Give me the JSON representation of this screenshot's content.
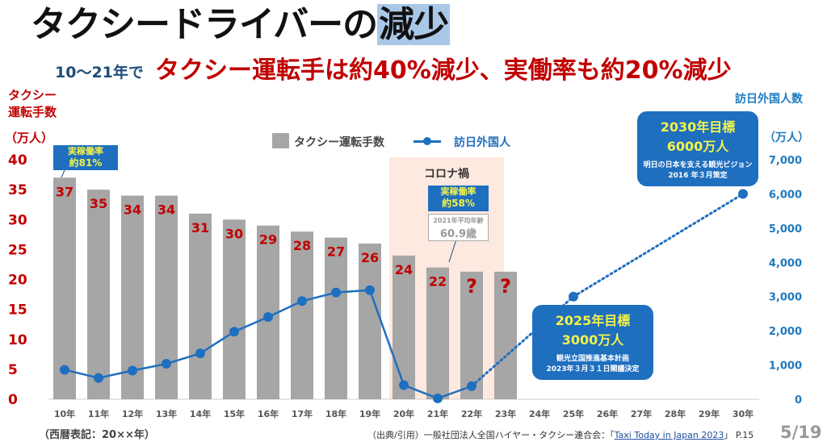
{
  "title": {
    "main": "タクシードライバーの",
    "highlight": "減少"
  },
  "subtitle": {
    "prefix": "10〜21年で",
    "headline": "タクシー運転手は約40%減少、実働率も約20%減少"
  },
  "left_axis": {
    "title_line1": "タクシー",
    "title_line2": "運転手数",
    "unit": "（万人）",
    "ticks": [
      "0",
      "5",
      "10",
      "15",
      "20",
      "25",
      "30",
      "35",
      "40"
    ]
  },
  "right_axis": {
    "title": "訪日外国人数",
    "unit": "（万人）",
    "ticks": [
      "0",
      "1,000",
      "2,000",
      "3,000",
      "4,000",
      "5,000",
      "6,000",
      "7,000"
    ]
  },
  "legend": {
    "bars": "タクシー運転手数",
    "line": "訪日外国人"
  },
  "annotations": {
    "rate2010": {
      "label": "実稼働率",
      "value": "約81%"
    },
    "corona": "コロナ禍",
    "rate2021": {
      "label": "実稼働率",
      "value": "約58%"
    },
    "age": {
      "label": "2021年平均年齢",
      "value": "60.9歳"
    },
    "target2025": {
      "title1": "2025年目標",
      "title2": "3000万人",
      "note1": "観光立国推進基本計画",
      "note2": "2023年３月３１日閣議決定"
    },
    "target2030": {
      "title1": "2030年目標",
      "title2": "6000万人",
      "note1": "明日の日本を支える観光ビジョン",
      "note2": "2016 年３月策定"
    }
  },
  "footer": {
    "era_note": "（西暦表記：20××年）",
    "source_prefix": "（出典/引用）一般社団法人全国ハイヤー・タクシー連合会：「",
    "source_link": "Taxi Today in Japan 2023",
    "source_suffix": "」 P.15",
    "page": "5/19"
  },
  "colors": {
    "bar": "#a6a6a6",
    "line": "#1f6fbf",
    "label_red": "#c00000",
    "corona_bg": "#fde9df"
  },
  "chart_data": {
    "type": "bar+line",
    "categories": [
      "10年",
      "11年",
      "12年",
      "13年",
      "14年",
      "15年",
      "16年",
      "17年",
      "18年",
      "19年",
      "20年",
      "21年",
      "22年",
      "23年",
      "24年",
      "25年",
      "26年",
      "27年",
      "28年",
      "29年",
      "30年"
    ],
    "series": [
      {
        "name": "タクシー運転手数",
        "type": "bar",
        "axis": "left",
        "values": [
          37,
          35,
          34,
          34,
          31,
          30,
          29,
          28,
          27,
          26,
          24,
          22,
          21.3,
          21.3,
          null,
          null,
          null,
          null,
          null,
          null,
          null
        ],
        "labels": [
          "37",
          "35",
          "34",
          "34",
          "31",
          "30",
          "29",
          "28",
          "27",
          "26",
          "24",
          "22",
          "?",
          "?",
          "",
          "",
          "",
          "",
          "",
          "",
          ""
        ]
      },
      {
        "name": "訪日外国人",
        "type": "line",
        "axis": "right",
        "values": [
          861,
          622,
          836,
          1036,
          1341,
          1974,
          2404,
          2869,
          3119,
          3188,
          412,
          25,
          383,
          null,
          null,
          3000,
          null,
          null,
          null,
          null,
          6000
        ],
        "dotted_from": "22年"
      }
    ],
    "ylim_left": [
      0,
      40
    ],
    "ylim_right": [
      0,
      7000
    ],
    "highlight_range": [
      "20年",
      "23年"
    ],
    "legend": "top-center"
  }
}
